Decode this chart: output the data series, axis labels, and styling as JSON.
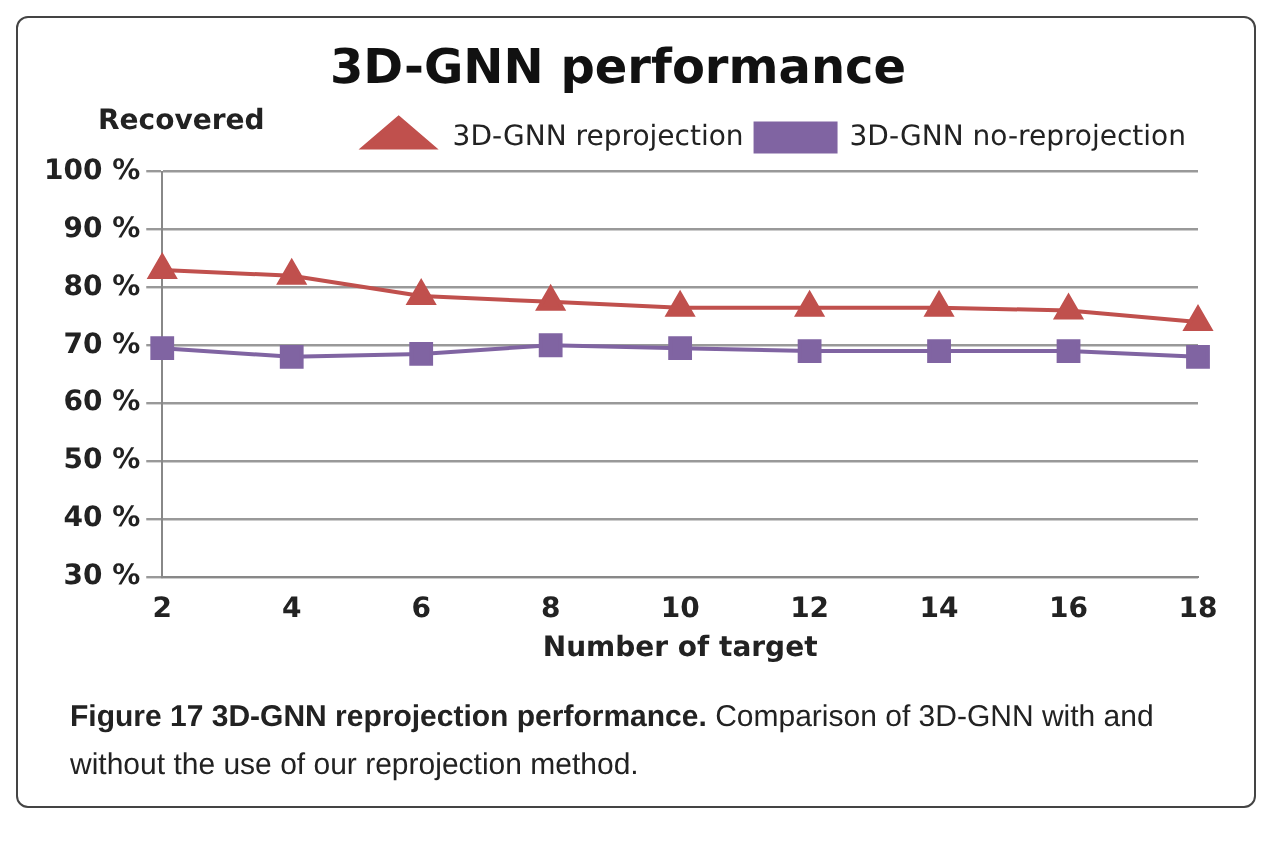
{
  "chart_data": {
    "type": "line",
    "title": "3D-GNN performance",
    "xlabel": "Number of target",
    "ylabel": "Recovered",
    "categories": [
      "2",
      "4",
      "6",
      "8",
      "10",
      "12",
      "14",
      "16",
      "18"
    ],
    "series": [
      {
        "name": "3D-GNN reprojection",
        "color": "#c0504d",
        "marker": "triangle",
        "values": [
          83,
          82,
          78.5,
          77.5,
          76.5,
          76.5,
          76.5,
          76,
          74
        ]
      },
      {
        "name": "3D-GNN no-reprojection",
        "color": "#8064a2",
        "marker": "square",
        "values": [
          69.5,
          68,
          68.5,
          70,
          69.5,
          69,
          69,
          69,
          68
        ]
      }
    ],
    "ylim": [
      30,
      100
    ],
    "yticks": [
      {
        "value": 30,
        "label": "30 %"
      },
      {
        "value": 40,
        "label": "40 %"
      },
      {
        "value": 50,
        "label": "50 %"
      },
      {
        "value": 60,
        "label": "60 %"
      },
      {
        "value": 70,
        "label": "70 %"
      },
      {
        "value": 80,
        "label": "80 %"
      },
      {
        "value": 90,
        "label": "90 %"
      },
      {
        "value": 100,
        "label": "100 %"
      }
    ],
    "grid": "y",
    "legend": "top right",
    "annotations": [
      "Figure 17 3D-GNN reprojection performance.",
      "Comparison of 3D-GNN with and without the use of our reprojection method."
    ]
  }
}
